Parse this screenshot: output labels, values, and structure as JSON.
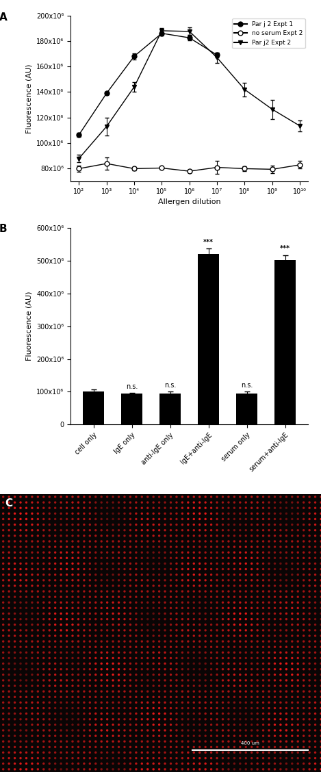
{
  "chart_data": [
    {
      "type": "line",
      "title": "A",
      "x_label": "Allergen dilution",
      "y_label": "Fluorescence (AU)",
      "log": "x",
      "x": [
        100,
        1000,
        10000,
        100000,
        1000000,
        10000000,
        100000000,
        1000000000,
        10000000000
      ],
      "xlim": [
        50,
        20000000000
      ],
      "xticks": [
        {
          "value": 100,
          "label": "10²"
        },
        {
          "value": 1000,
          "label": "10³"
        },
        {
          "value": 10000,
          "label": "10⁴"
        },
        {
          "value": 100000,
          "label": "10⁵"
        },
        {
          "value": 1000000,
          "label": "10⁶"
        },
        {
          "value": 10000000,
          "label": "10⁷"
        },
        {
          "value": 100000000,
          "label": "10⁸"
        },
        {
          "value": 1000000000,
          "label": "10⁹"
        },
        {
          "value": 10000000000,
          "label": "10¹⁰"
        }
      ],
      "ylim": [
        70000000,
        200000000
      ],
      "yticks": [
        {
          "value": 80000000,
          "label": "80x10⁶"
        },
        {
          "value": 100000000,
          "label": "100x10⁶"
        },
        {
          "value": 120000000,
          "label": "120x10⁶"
        },
        {
          "value": 140000000,
          "label": "140x10⁶"
        },
        {
          "value": 160000000,
          "label": "160x10⁶"
        },
        {
          "value": 180000000,
          "label": "180x10⁶"
        },
        {
          "value": 200000000,
          "label": "200x10⁶"
        }
      ],
      "legend": "upper right",
      "series": [
        {
          "name": "Par j 2 Expt 1",
          "color": "#000000",
          "marker": "circle",
          "line_style": "solid",
          "values": [
            106500000,
            139000000,
            168000000,
            186000000,
            182500000,
            169000000,
            null,
            null,
            null
          ],
          "errors": [
            1500000,
            1000000,
            2500000,
            2000000,
            2000000,
            2000000,
            null,
            null,
            null
          ]
        },
        {
          "name": "no serum Expt 2",
          "color": "#000000",
          "marker": "open_circle",
          "line_style": "solid",
          "values": [
            80000000,
            84000000,
            80000000,
            80500000,
            78000000,
            81000000,
            80000000,
            79500000,
            83000000
          ],
          "errors": [
            2500000,
            5000000,
            1500000,
            1000000,
            1000000,
            5000000,
            2000000,
            3000000,
            3000000
          ]
        },
        {
          "name": "Par j2 Expt 2",
          "color": "#000000",
          "marker": "triangle_down",
          "line_style": "solid",
          "values": [
            88000000,
            113000000,
            144000000,
            188000000,
            187500000,
            167000000,
            142000000,
            126500000,
            113500000
          ],
          "errors": [
            3000000,
            7000000,
            4000000,
            2000000,
            3000000,
            4000000,
            5500000,
            7500000,
            4500000
          ]
        }
      ]
    },
    {
      "type": "bar",
      "title": "B",
      "y_label": "Fluorescence (AU)",
      "categories": [
        "cell only",
        "IgE only",
        "anti-IgE only",
        "IgE+anti-IgE",
        "serum only",
        "serum+anti-IgE"
      ],
      "values": [
        100000000,
        95000000,
        95000000,
        520000000,
        95000000,
        502000000
      ],
      "errors": [
        8000000,
        2000000,
        5000000,
        17000000,
        5000000,
        15000000
      ],
      "annotations": [
        null,
        "n.s.",
        "n.s.",
        "***",
        "n.s.",
        "***"
      ],
      "color": "#000000",
      "ylim": [
        0,
        600000000
      ],
      "yticks": [
        0,
        {
          "value": 100000000,
          "label": "100x10⁶"
        },
        {
          "value": 200000000,
          "label": "200x10⁶"
        },
        {
          "value": 300000000,
          "label": "300x10⁶"
        },
        {
          "value": 400000000,
          "label": "400x10⁶"
        },
        {
          "value": 500000000,
          "label": "500x10⁶"
        },
        {
          "value": 600000000,
          "label": "600x10⁶"
        }
      ]
    }
  ],
  "image": {
    "label": "C",
    "scale_bar_label": "400 um"
  }
}
